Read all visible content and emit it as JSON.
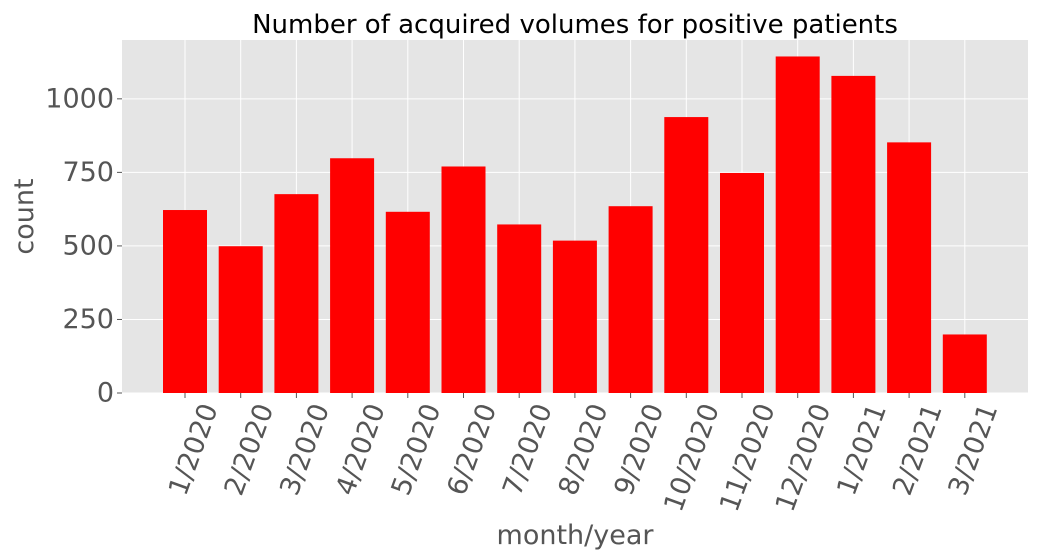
{
  "chart_data": {
    "type": "bar",
    "title": "Number of acquired volumes for positive patients",
    "xlabel": "month/year",
    "ylabel": "count",
    "categories": [
      "1/2020",
      "2/2020",
      "3/2020",
      "4/2020",
      "5/2020",
      "6/2020",
      "7/2020",
      "8/2020",
      "9/2020",
      "10/2020",
      "11/2020",
      "12/2020",
      "1/2021",
      "2/2021",
      "3/2021"
    ],
    "values": [
      622,
      499,
      676,
      798,
      616,
      770,
      573,
      518,
      635,
      938,
      748,
      1144,
      1078,
      852,
      199
    ],
    "ylim": [
      0,
      1200
    ],
    "yticks": [
      0,
      250,
      500,
      750,
      1000
    ],
    "grid": true,
    "legend": "none",
    "colors": {
      "bar": "#ff0000",
      "plot_background": "#e5e5e5",
      "grid": "#ffffff",
      "text": "#555555"
    }
  }
}
